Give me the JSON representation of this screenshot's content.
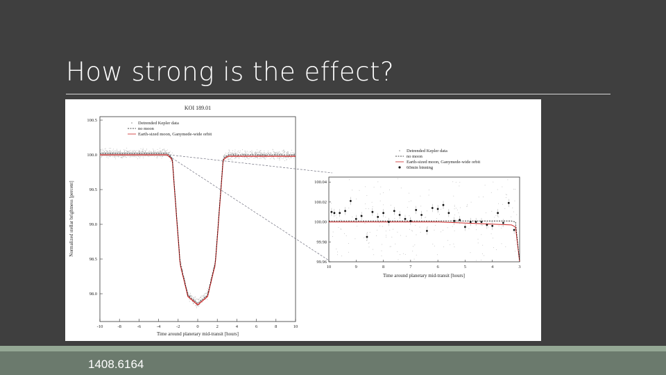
{
  "slide": {
    "title": "How strong is the effect?",
    "footer": "1408.6164"
  },
  "colors": {
    "background": "#3f3f3f",
    "footer_bar": "#6b7a6d",
    "footer_accent": "#95a895",
    "moon_model": "#cc2222",
    "no_moon_model": "#111111"
  },
  "chart_data": [
    {
      "type": "line",
      "title": "KOI 189.01",
      "xlabel": "Time around planetary mid-transit [hours]",
      "ylabel": "Normalized stellar brightness [percent]",
      "xlim": [
        -10,
        10
      ],
      "ylim": [
        97.6,
        100.55
      ],
      "xticks": [
        -10,
        -8,
        -6,
        -4,
        -2,
        0,
        2,
        4,
        6,
        8,
        10
      ],
      "yticks": [
        "100.5",
        "100.0",
        "99.5",
        "99.0",
        "98.5",
        "98.0"
      ],
      "legend": [
        "Detrended Kepler data",
        "no moon",
        "Earth-sized moon, Ganymede-wide orbit"
      ],
      "legend_placement": "top-left",
      "series": [
        {
          "name": "no moon",
          "x": [
            -10,
            -3.1,
            -2.6,
            -2.2,
            -1.8,
            -1.0,
            0,
            1.0,
            1.8,
            2.2,
            2.6,
            3.1,
            10
          ],
          "y": [
            100.02,
            100.02,
            99.95,
            99.2,
            98.45,
            97.98,
            97.86,
            97.98,
            98.45,
            99.2,
            99.95,
            100.0,
            100.0
          ]
        },
        {
          "name": "Earth-sized moon, Ganymede-wide orbit",
          "x": [
            -10,
            -3.1,
            -2.6,
            -2.2,
            -1.8,
            -1.0,
            0,
            1.0,
            1.8,
            2.2,
            2.6,
            3.1,
            10
          ],
          "y": [
            100.0,
            100.0,
            99.93,
            99.18,
            98.43,
            97.96,
            97.84,
            97.96,
            98.43,
            99.18,
            99.93,
            99.98,
            99.98
          ]
        }
      ]
    },
    {
      "type": "scatter",
      "title": "",
      "xlabel": "Time around planetary mid-transit [hours]",
      "ylabel": "",
      "xlim": [
        10,
        3
      ],
      "ylim": [
        99.96,
        100.045
      ],
      "xticks": [
        "10",
        "9",
        "8",
        "7",
        "6",
        "5",
        "4",
        "3"
      ],
      "yticks": [
        "100.04",
        "100.02",
        "100.00",
        "99.98",
        "99.96"
      ],
      "legend": [
        "Detrended Kepler data",
        "no moon",
        "Earth-sized moon, Ganymede-wide orbit",
        "60min binning"
      ],
      "legend_placement": "top-right",
      "series": [
        {
          "name": "60min binning",
          "x": [
            9.9,
            9.8,
            9.6,
            9.4,
            9.2,
            9.0,
            8.8,
            8.6,
            8.4,
            8.2,
            8.0,
            7.8,
            7.6,
            7.4,
            7.2,
            7.0,
            6.8,
            6.6,
            6.4,
            6.2,
            6.0,
            5.8,
            5.6,
            5.4,
            5.2,
            5.0,
            4.8,
            4.6,
            4.4,
            4.2,
            4.0,
            3.8,
            3.6,
            3.4,
            3.2
          ],
          "y": [
            100.01,
            100.009,
            100.009,
            100.011,
            100.021,
            100.003,
            100.006,
            99.985,
            100.01,
            100.005,
            100.009,
            100.0,
            100.011,
            100.007,
            100.003,
            100.001,
            100.012,
            100.007,
            99.991,
            100.014,
            100.013,
            100.017,
            100.009,
            100.001,
            100.002,
            99.995,
            100.0,
            100.0,
            100.0,
            99.997,
            99.996,
            100.009,
            99.999,
            100.019,
            99.992
          ]
        },
        {
          "name": "no moon",
          "x": [
            10,
            3.3,
            3.15,
            3.0
          ],
          "y": [
            100.001,
            100.001,
            100.0,
            99.96
          ]
        },
        {
          "name": "Earth-sized moon, Ganymede-wide orbit",
          "x": [
            10,
            6.0,
            3.3,
            3.15,
            3.0
          ],
          "y": [
            100.0,
            100.0,
            99.997,
            99.995,
            99.96
          ]
        }
      ]
    }
  ]
}
